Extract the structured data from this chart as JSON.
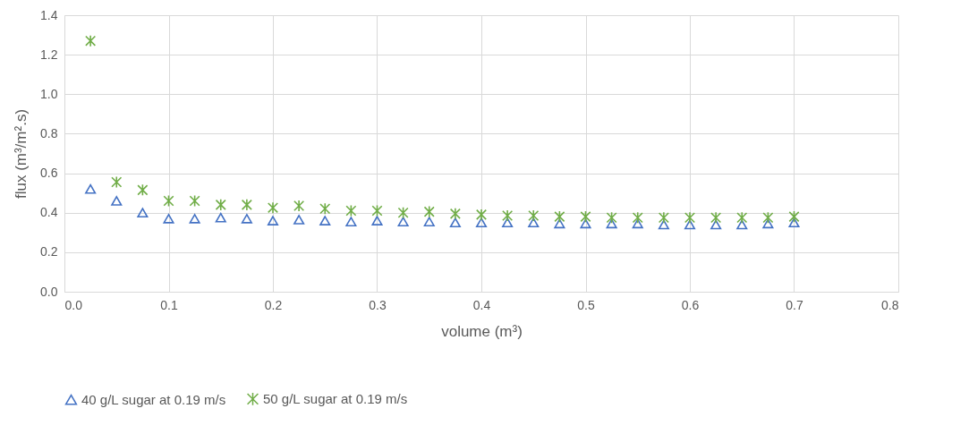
{
  "chart_data": {
    "type": "scatter",
    "xlabel": "volume (m³)",
    "ylabel": "flux (m³/m².s)",
    "x": [
      0.025,
      0.05,
      0.075,
      0.1,
      0.125,
      0.15,
      0.175,
      0.2,
      0.225,
      0.25,
      0.275,
      0.3,
      0.325,
      0.35,
      0.375,
      0.4,
      0.425,
      0.45,
      0.475,
      0.5,
      0.525,
      0.55,
      0.575,
      0.6,
      0.625,
      0.65,
      0.675,
      0.7
    ],
    "series": [
      {
        "name": "40 g/L sugar at 0.19 m/s",
        "color": "#4472c4",
        "marker": "triangle",
        "values": [
          0.52,
          0.46,
          0.4,
          0.37,
          0.37,
          0.375,
          0.37,
          0.36,
          0.365,
          0.36,
          0.355,
          0.36,
          0.355,
          0.355,
          0.35,
          0.35,
          0.35,
          0.35,
          0.345,
          0.345,
          0.345,
          0.345,
          0.34,
          0.34,
          0.34,
          0.34,
          0.345,
          0.35
        ]
      },
      {
        "name": "50 g/L sugar at 0.19 m/s",
        "color": "#70ad47",
        "marker": "cross",
        "values": [
          1.27,
          0.555,
          0.515,
          0.46,
          0.46,
          0.44,
          0.44,
          0.425,
          0.435,
          0.42,
          0.41,
          0.41,
          0.4,
          0.405,
          0.395,
          0.39,
          0.385,
          0.385,
          0.38,
          0.38,
          0.375,
          0.375,
          0.375,
          0.375,
          0.375,
          0.375,
          0.375,
          0.38
        ]
      }
    ],
    "xlim": [
      0,
      0.8
    ],
    "xticks": [
      {
        "value": 0,
        "label": "0.0"
      },
      0.1,
      0.2,
      0.3,
      0.4,
      0.5,
      0.6,
      0.7,
      0.8
    ],
    "ylim": [
      0,
      1.4
    ],
    "yticks": [
      {
        "value": 0,
        "label": "0.0"
      },
      0.2,
      0.4,
      0.6,
      0.8,
      {
        "value": 1,
        "label": "1.0"
      },
      1.2,
      1.4
    ],
    "grid": true,
    "legend": "bottom"
  }
}
